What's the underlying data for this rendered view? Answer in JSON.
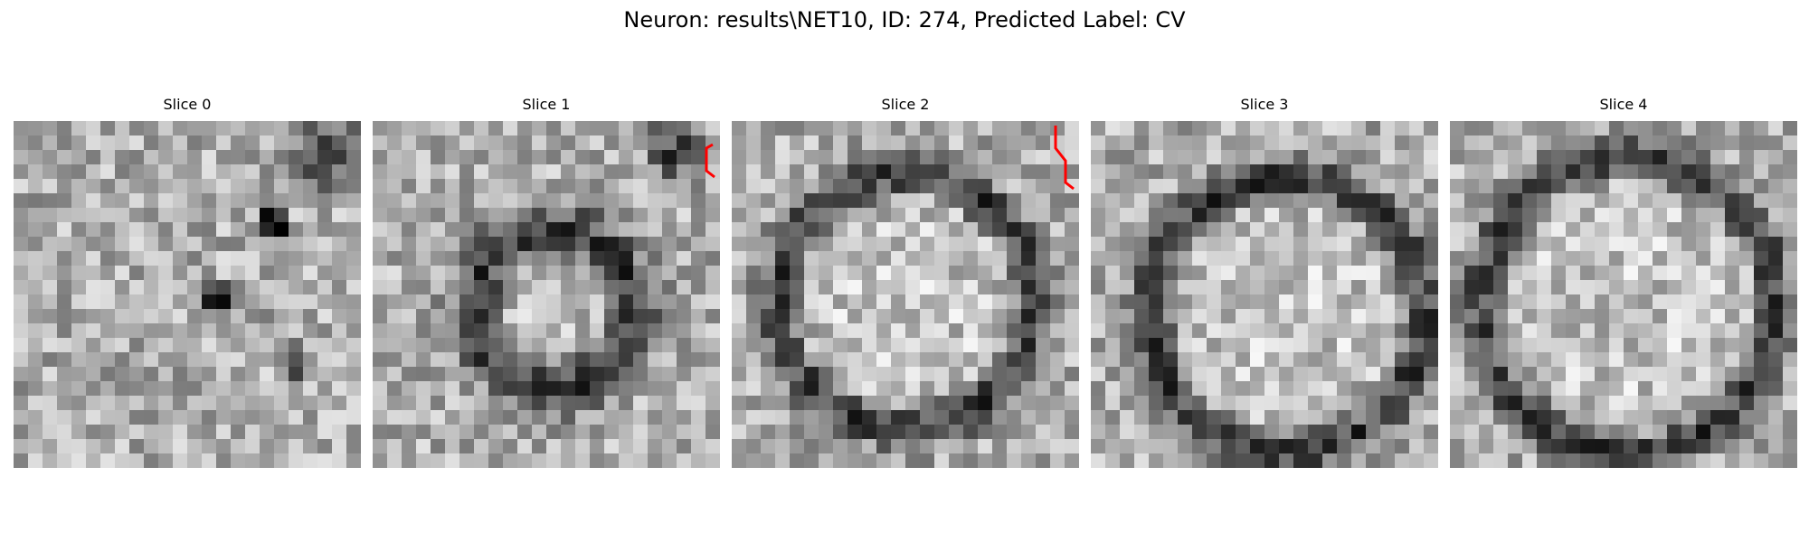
{
  "title": "Neuron: results\\NET10, ID: 274, Predicted Label: CV",
  "colormap": "gray",
  "overlay_color": "#ff0000",
  "slices": [
    {
      "label": "Slice 0",
      "pattern": "noise-dark-corner",
      "seed": 11
    },
    {
      "label": "Slice 1",
      "pattern": "ring-small",
      "seed": 23
    },
    {
      "label": "Slice 2",
      "pattern": "ring-large",
      "seed": 37
    },
    {
      "label": "Slice 3",
      "pattern": "ring-offset",
      "seed": 41
    },
    {
      "label": "Slice 4",
      "pattern": "ring-full",
      "seed": 53
    }
  ]
}
